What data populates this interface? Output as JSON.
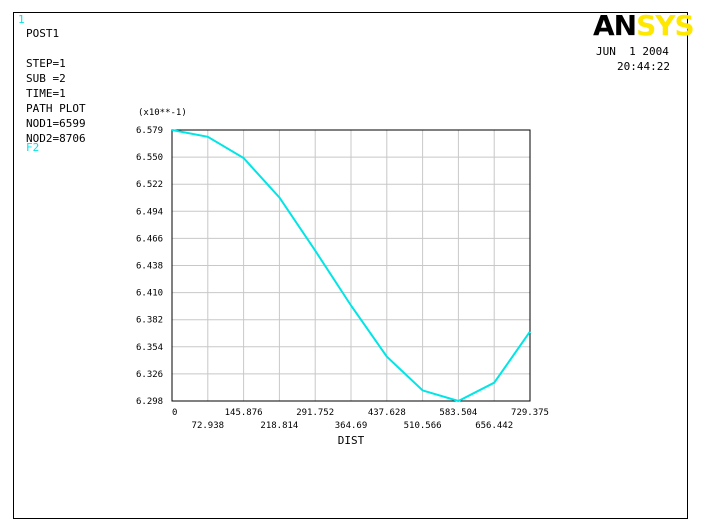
{
  "window_number": "1",
  "info": {
    "lines": [
      "POST1",
      "",
      "STEP=1",
      "SUB =2",
      "TIME=1",
      "PATH PLOT",
      "NOD1=6599",
      "NOD2=8706"
    ],
    "item_label": "F2"
  },
  "logo": {
    "part1": "AN",
    "part2": "SYS"
  },
  "date": "JUN  1 2004",
  "time": "20:44:22",
  "colors": {
    "curve": "#00e5e5",
    "grid": "#c8c8c8",
    "logo_accent": "#ffe800"
  },
  "chart_data": {
    "type": "line",
    "xlabel": "DIST",
    "y_multiplier": "(x10**-1)",
    "xlim": [
      0,
      729.375
    ],
    "ylim": [
      6.298,
      6.579
    ],
    "x_ticks_upper": [
      "0",
      "145.876",
      "291.752",
      "437.628",
      "583.504",
      "729.375"
    ],
    "x_ticks_lower": [
      "72.938",
      "218.814",
      "364.69",
      "510.566",
      "656.442"
    ],
    "y_ticks": [
      "6.579",
      "6.550",
      "6.522",
      "6.494",
      "6.466",
      "6.438",
      "6.410",
      "6.382",
      "6.354",
      "6.326",
      "6.298"
    ],
    "grid": true,
    "series": [
      {
        "x": [
          0,
          72.938,
          145.876,
          218.814,
          291.752,
          364.69,
          437.628,
          510.566,
          583.504,
          656.442,
          729.375
        ],
        "values": [
          6.579,
          6.572,
          6.55,
          6.509,
          6.454,
          6.397,
          6.344,
          6.309,
          6.298,
          6.317,
          6.37
        ]
      }
    ]
  }
}
